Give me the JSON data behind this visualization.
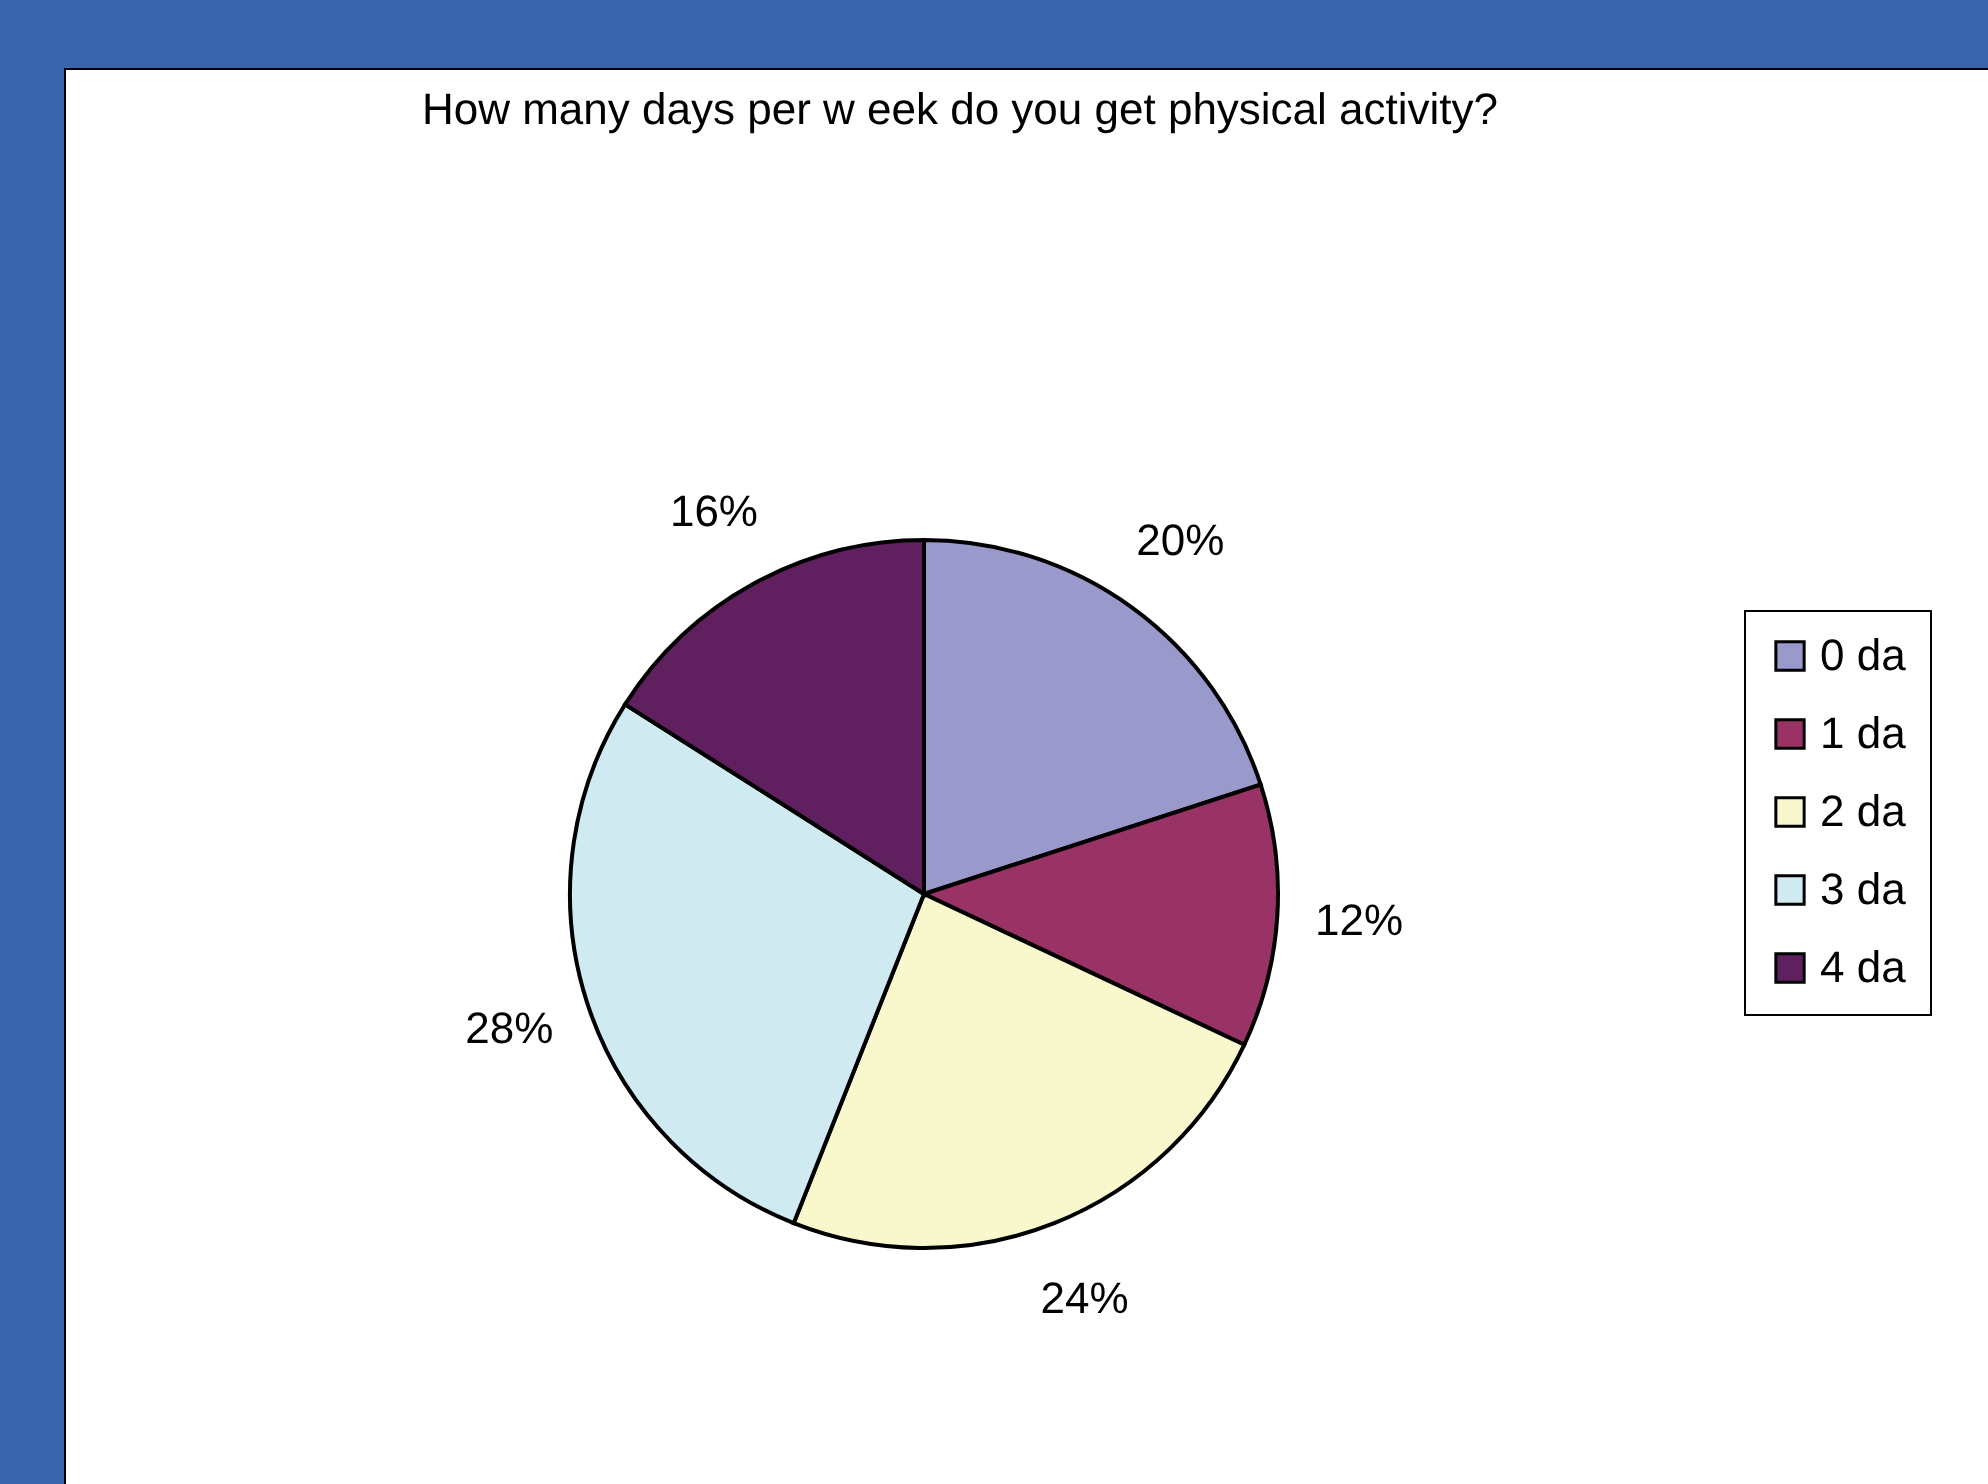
{
  "chart_data": {
    "type": "pie",
    "title": "How  many days per w eek do you get physical activity?",
    "categories": [
      "0 da",
      "1 da",
      "2 da",
      "3 da",
      "4 da"
    ],
    "values": [
      20,
      12,
      24,
      28,
      16
    ],
    "value_labels": [
      "20%",
      "12%",
      "24%",
      "28%",
      "16%"
    ],
    "colors": [
      "#9999cc",
      "#993366",
      "#f9f7cc",
      "#cfeaf1",
      "#601f5f"
    ],
    "legend": "right"
  }
}
